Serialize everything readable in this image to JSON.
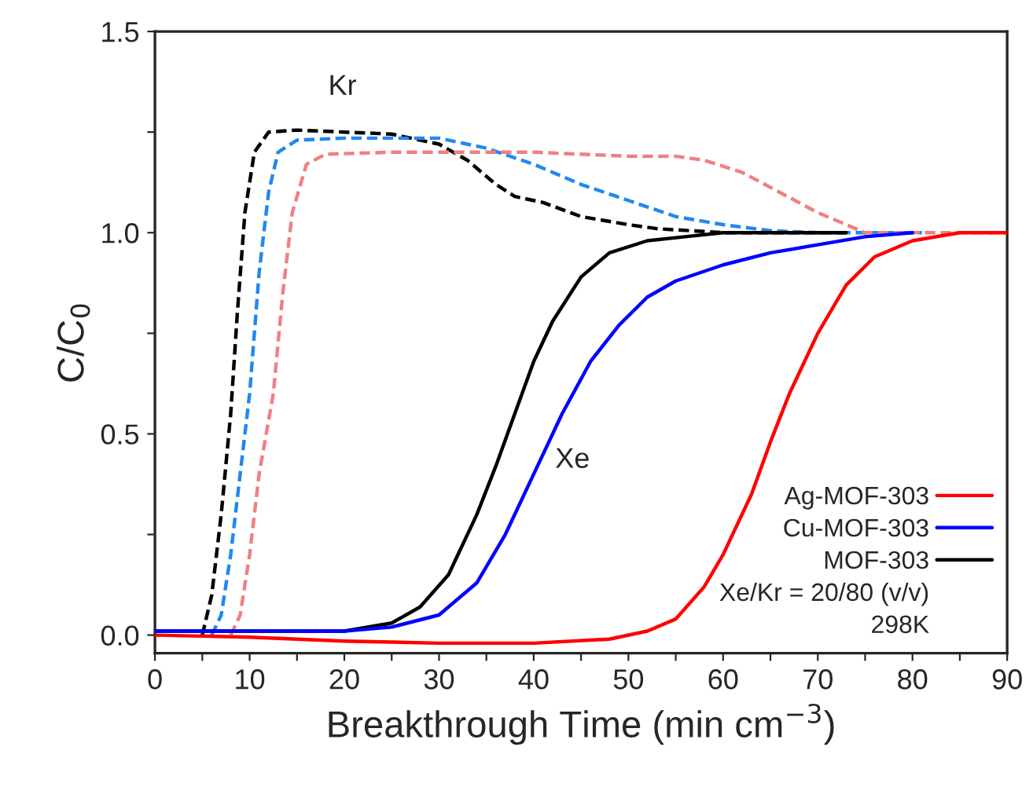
{
  "chart_data": {
    "type": "line",
    "xlabel": "Breakthrough Time (min cm$^{−3}$)",
    "ylabel": "C/C$_{0}$",
    "xlim": [
      0,
      90
    ],
    "ylim": [
      -0.045,
      1.5
    ],
    "xticks": [
      0,
      {
        "value": 5,
        "label": null
      },
      10,
      {
        "value": 15,
        "label": null
      },
      20,
      {
        "value": 25,
        "label": null
      },
      30,
      {
        "value": 35,
        "label": null
      },
      40,
      {
        "value": 45,
        "label": null
      },
      50,
      {
        "value": 55,
        "label": null
      },
      60,
      {
        "value": 65,
        "label": null
      },
      70,
      {
        "value": 75,
        "label": null
      },
      80,
      {
        "value": 85,
        "label": null
      },
      90
    ],
    "yticks": [
      {
        "value": 0,
        "label": "0.0"
      },
      {
        "value": 0.25,
        "label": null
      },
      0.5,
      {
        "value": 0.75,
        "label": null
      },
      {
        "value": 1,
        "label": "1.0"
      },
      {
        "value": 1.25,
        "label": null
      },
      1.5
    ],
    "grid": false,
    "legend": "bottom right",
    "marker": "none",
    "series": [
      {
        "name": "Ag-MOF-303",
        "color": "#ff0000",
        "line_style": "solid",
        "x": [
          0,
          10,
          20,
          30,
          40,
          48,
          52,
          55,
          58,
          60,
          63,
          65,
          67,
          70,
          73,
          76,
          80,
          85,
          90
        ],
        "values": [
          0.0,
          -0.005,
          -0.015,
          -0.02,
          -0.02,
          -0.01,
          0.01,
          0.04,
          0.12,
          0.2,
          0.35,
          0.48,
          0.6,
          0.75,
          0.87,
          0.94,
          0.98,
          1.0,
          1.0
        ]
      },
      {
        "name": "Cu-MOF-303",
        "color": "#0000ff",
        "line_style": "solid",
        "x": [
          0,
          20,
          25,
          30,
          34,
          37,
          40,
          43,
          46,
          49,
          52,
          55,
          60,
          65,
          70,
          75,
          80
        ],
        "values": [
          0.01,
          0.01,
          0.02,
          0.05,
          0.13,
          0.25,
          0.4,
          0.55,
          0.68,
          0.77,
          0.84,
          0.88,
          0.92,
          0.95,
          0.97,
          0.99,
          1.0
        ]
      },
      {
        "name": "MOF-303",
        "color": "#000000",
        "line_style": "solid",
        "x": [
          0,
          10,
          20,
          25,
          28,
          31,
          34,
          36,
          38,
          40,
          42,
          45,
          48,
          52,
          56,
          60,
          73
        ],
        "values": [
          0.01,
          0.01,
          0.01,
          0.03,
          0.07,
          0.15,
          0.3,
          0.42,
          0.55,
          0.68,
          0.78,
          0.89,
          0.95,
          0.98,
          0.99,
          1.0,
          1.0
        ]
      },
      {
        "color": "#f08080",
        "line_style": "dashed",
        "x": [
          8,
          9,
          10,
          11,
          12.5,
          13.5,
          14.5,
          16,
          18,
          25,
          40,
          50,
          55,
          58,
          62,
          66,
          70,
          73,
          75,
          90
        ],
        "values": [
          0,
          0.05,
          0.2,
          0.4,
          0.6,
          0.85,
          1.05,
          1.17,
          1.195,
          1.2,
          1.2,
          1.19,
          1.19,
          1.18,
          1.15,
          1.1,
          1.05,
          1.02,
          1.0,
          1.0
        ]
      },
      {
        "color": "#2288ee",
        "line_style": "dashed",
        "x": [
          6,
          7,
          8,
          9,
          10,
          11,
          12,
          13,
          15,
          20,
          30,
          35,
          40,
          45,
          50,
          55,
          60,
          65,
          70,
          81
        ],
        "values": [
          0,
          0.05,
          0.2,
          0.4,
          0.6,
          0.9,
          1.1,
          1.2,
          1.23,
          1.235,
          1.235,
          1.21,
          1.17,
          1.12,
          1.08,
          1.04,
          1.02,
          1.005,
          1.0,
          1.0
        ]
      },
      {
        "color": "#000000",
        "line_style": "dashed",
        "x": [
          5,
          6,
          7,
          8,
          8.7,
          9.5,
          10.5,
          12,
          15,
          20,
          25,
          30,
          33,
          36,
          38,
          41,
          45,
          50,
          53,
          60,
          73
        ],
        "values": [
          0,
          0.1,
          0.3,
          0.55,
          0.8,
          1.05,
          1.2,
          1.25,
          1.255,
          1.25,
          1.245,
          1.22,
          1.18,
          1.12,
          1.09,
          1.075,
          1.04,
          1.02,
          1.01,
          1.0,
          1.0
        ]
      }
    ],
    "annotations": [
      "Kr",
      "Xe",
      "Xe/Kr = 20/80 (v/v)",
      "298K"
    ]
  }
}
